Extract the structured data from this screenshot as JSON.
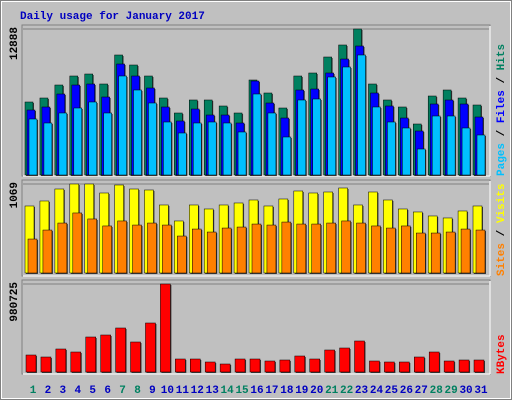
{
  "chart_data": [
    {
      "type": "bar",
      "title": "Daily usage for January 2017",
      "title_color": "#0000c0",
      "ylim": [
        0,
        12888
      ],
      "yticks": [
        12888
      ],
      "legend_separator": " / ",
      "series": [
        {
          "name": "Hits",
          "color": "#008060",
          "values": [
            6444,
            6797,
            7944,
            8739,
            8915,
            8033,
            10593,
            9710,
            8739,
            6797,
            5473,
            6621,
            6621,
            6091,
            5473,
            8386,
            7238,
            5914,
            8739,
            9004,
            10416,
            11476,
            12888,
            8033,
            6621,
            6003,
            4502,
            6973,
            7503,
            6797,
            6179
          ]
        },
        {
          "name": "Files",
          "color": "#0000ff",
          "values": [
            5738,
            6003,
            7150,
            7944,
            8033,
            6885,
            9798,
            8739,
            7680,
            6003,
            4767,
            5826,
            5296,
            5296,
            4590,
            8297,
            6355,
            5031,
            7503,
            7591,
            9004,
            10239,
            11387,
            7238,
            6091,
            5031,
            3884,
            6267,
            6620,
            6267,
            5120
          ]
        },
        {
          "name": "Pages",
          "color": "#00c0ff",
          "values": [
            4943,
            4590,
            5473,
            5914,
            6444,
            5473,
            8739,
            7503,
            6355,
            4678,
            3707,
            4590,
            4678,
            4590,
            3796,
            7150,
            5473,
            3354,
            6620,
            6709,
            8651,
            9533,
            10593,
            6003,
            4678,
            4149,
            2295,
            5208,
            5208,
            4149,
            3531
          ]
        }
      ]
    },
    {
      "type": "bar",
      "ylim": [
        0,
        1069
      ],
      "yticks": [
        1069
      ],
      "legend_separator": " / ",
      "series": [
        {
          "name": "Visits",
          "color": "#ffff00",
          "values": [
            805,
            865,
            1009,
            1069,
            1069,
            961,
            1057,
            1009,
            997,
            817,
            625,
            817,
            769,
            817,
            841,
            877,
            805,
            889,
            985,
            961,
            973,
            1021,
            817,
            973,
            877,
            769,
            733,
            685,
            661,
            745,
            805
          ]
        },
        {
          "name": "Sites",
          "color": "#ff8000",
          "values": [
            408,
            516,
            600,
            721,
            649,
            565,
            625,
            576,
            600,
            576,
            444,
            528,
            492,
            540,
            552,
            588,
            576,
            612,
            588,
            588,
            600,
            625,
            600,
            565,
            540,
            565,
            480,
            480,
            492,
            528,
            516
          ]
        }
      ]
    },
    {
      "type": "bar",
      "ylim": [
        0,
        980725
      ],
      "yticks": [
        980725
      ],
      "categories": [
        "1",
        "2",
        "3",
        "4",
        "5",
        "6",
        "7",
        "8",
        "9",
        "10",
        "11",
        "12",
        "13",
        "14",
        "15",
        "16",
        "17",
        "18",
        "19",
        "20",
        "21",
        "22",
        "23",
        "24",
        "25",
        "26",
        "27",
        "28",
        "29",
        "30",
        "31"
      ],
      "category_colors": [
        "#008060",
        "#0000c0",
        "#0000c0",
        "#0000c0",
        "#0000c0",
        "#0000c0",
        "#008060",
        "#008060",
        "#0000c0",
        "#0000c0",
        "#0000c0",
        "#0000c0",
        "#0000c0",
        "#008060",
        "#008060",
        "#0000c0",
        "#0000c0",
        "#0000c0",
        "#0000c0",
        "#0000c0",
        "#008060",
        "#008060",
        "#0000c0",
        "#0000c0",
        "#0000c0",
        "#0000c0",
        "#0000c0",
        "#008060",
        "#008060",
        "#0000c0",
        "#0000c0"
      ],
      "series": [
        {
          "name": "KBytes",
          "color": "#ff0000",
          "values": [
            189465,
            167175,
            256335,
            222900,
            390075,
            412365,
            490380,
            334350,
            546105,
            980725,
            144885,
            144885,
            111450,
            89160,
            144885,
            144885,
            122595,
            133740,
            178320,
            144885,
            245190,
            267480,
            345495,
            122595,
            111450,
            111450,
            167175,
            222900,
            122595,
            133740,
            133740
          ]
        }
      ]
    }
  ]
}
